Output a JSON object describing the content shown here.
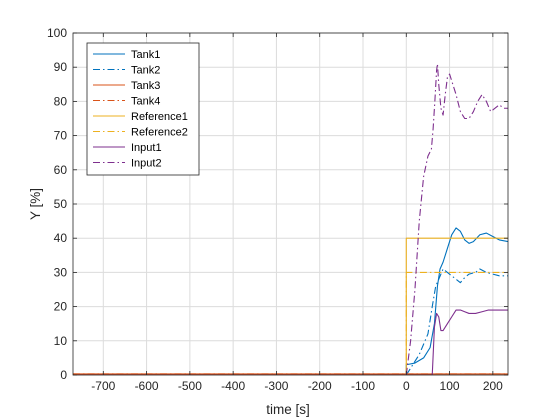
{
  "chart_data": {
    "type": "line",
    "xlabel": "time [s]",
    "ylabel": "Y [%]",
    "xlim": [
      -770,
      235
    ],
    "ylim": [
      0,
      100
    ],
    "xticks": [
      -700,
      -600,
      -500,
      -400,
      -300,
      -200,
      -100,
      0,
      100,
      200
    ],
    "yticks": [
      0,
      10,
      20,
      30,
      40,
      50,
      60,
      70,
      80,
      90,
      100
    ],
    "grid": true,
    "legend_position": "top-left",
    "series": [
      {
        "name": "Tank1",
        "color": "#0072BD",
        "dash": "solid",
        "points": [
          [
            -770,
            0
          ],
          [
            0,
            0
          ],
          [
            0,
            3
          ],
          [
            20,
            3.5
          ],
          [
            40,
            5
          ],
          [
            55,
            8
          ],
          [
            65,
            15
          ],
          [
            72,
            26
          ],
          [
            78,
            31
          ],
          [
            85,
            33
          ],
          [
            95,
            37
          ],
          [
            105,
            41
          ],
          [
            115,
            43
          ],
          [
            125,
            42
          ],
          [
            135,
            39.5
          ],
          [
            145,
            38.5
          ],
          [
            155,
            39
          ],
          [
            170,
            41
          ],
          [
            185,
            41.5
          ],
          [
            200,
            40.5
          ],
          [
            215,
            39.5
          ],
          [
            235,
            39
          ]
        ]
      },
      {
        "name": "Tank2",
        "color": "#0072BD",
        "dash": "dashdot",
        "points": [
          [
            -770,
            0
          ],
          [
            0,
            0
          ],
          [
            10,
            2
          ],
          [
            30,
            6
          ],
          [
            50,
            12
          ],
          [
            60,
            20
          ],
          [
            68,
            26
          ],
          [
            75,
            28
          ],
          [
            85,
            31
          ],
          [
            95,
            30
          ],
          [
            105,
            29
          ],
          [
            115,
            28
          ],
          [
            125,
            27
          ],
          [
            135,
            28.5
          ],
          [
            145,
            29.5
          ],
          [
            160,
            30
          ],
          [
            170,
            31
          ],
          [
            185,
            30
          ],
          [
            200,
            29.5
          ],
          [
            215,
            29
          ],
          [
            235,
            29
          ]
        ]
      },
      {
        "name": "Tank3",
        "color": "#D95319",
        "dash": "solid",
        "points": [
          [
            -770,
            0.3
          ],
          [
            235,
            0.3
          ]
        ]
      },
      {
        "name": "Tank4",
        "color": "#D95319",
        "dash": "dashdot",
        "points": [
          [
            -770,
            0.3
          ],
          [
            235,
            0.3
          ]
        ]
      },
      {
        "name": "Reference1",
        "color": "#EDB120",
        "dash": "solid",
        "points": [
          [
            -770,
            0
          ],
          [
            0,
            0
          ],
          [
            0,
            40
          ],
          [
            235,
            40
          ]
        ]
      },
      {
        "name": "Reference2",
        "color": "#EDB120",
        "dash": "dashdot",
        "points": [
          [
            -770,
            0
          ],
          [
            0,
            0
          ],
          [
            0,
            30
          ],
          [
            235,
            30
          ]
        ]
      },
      {
        "name": "Input1",
        "color": "#7E2F8E",
        "dash": "solid",
        "points": [
          [
            -770,
            0
          ],
          [
            60,
            0
          ],
          [
            65,
            14
          ],
          [
            70,
            18
          ],
          [
            75,
            17
          ],
          [
            80,
            13
          ],
          [
            85,
            13
          ],
          [
            95,
            15
          ],
          [
            105,
            17
          ],
          [
            115,
            19
          ],
          [
            125,
            19
          ],
          [
            135,
            18.5
          ],
          [
            145,
            18
          ],
          [
            160,
            18
          ],
          [
            175,
            18.5
          ],
          [
            190,
            19
          ],
          [
            210,
            19
          ],
          [
            235,
            19
          ]
        ]
      },
      {
        "name": "Input2",
        "color": "#7E2F8E",
        "dash": "dashdot",
        "points": [
          [
            -770,
            0
          ],
          [
            0,
            0
          ],
          [
            10,
            10
          ],
          [
            20,
            25
          ],
          [
            30,
            45
          ],
          [
            40,
            58
          ],
          [
            50,
            64
          ],
          [
            58,
            66
          ],
          [
            62,
            72
          ],
          [
            66,
            80
          ],
          [
            70,
            89
          ],
          [
            72,
            91
          ],
          [
            75,
            85
          ],
          [
            80,
            78
          ],
          [
            85,
            76
          ],
          [
            90,
            82
          ],
          [
            95,
            87
          ],
          [
            100,
            88
          ],
          [
            105,
            86
          ],
          [
            115,
            82
          ],
          [
            125,
            77
          ],
          [
            135,
            75
          ],
          [
            145,
            75
          ],
          [
            155,
            77
          ],
          [
            165,
            80
          ],
          [
            175,
            82
          ],
          [
            185,
            80
          ],
          [
            195,
            77
          ],
          [
            205,
            78
          ],
          [
            215,
            79
          ],
          [
            225,
            78
          ],
          [
            235,
            78
          ]
        ]
      }
    ]
  }
}
